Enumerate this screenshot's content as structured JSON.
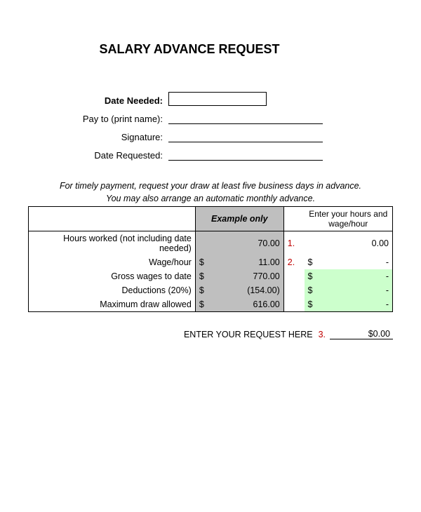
{
  "title": "SALARY ADVANCE REQUEST",
  "form": {
    "date_needed_label": "Date Needed:",
    "pay_to_label": "Pay to (print name):",
    "signature_label": "Signature:",
    "date_requested_label": "Date Requested:"
  },
  "instructions": {
    "line1": "For timely payment, request your draw at least five business days in advance.",
    "line2": "You may also arrange an automatic monthly advance."
  },
  "table": {
    "header": {
      "example": "Example only",
      "user_input": "Enter your hours and wage/hour"
    },
    "rows": [
      {
        "label": "Hours worked (not including date needed)",
        "example_curr": "",
        "example_val": "70.00",
        "num": "1.",
        "user_curr": "",
        "user_val": "0.00",
        "green": false
      },
      {
        "label": "Wage/hour",
        "example_curr": "$",
        "example_val": "11.00",
        "num": "2.",
        "user_curr": "$",
        "user_val": "-",
        "green": false
      },
      {
        "label": "Gross wages to date",
        "example_curr": "$",
        "example_val": "770.00",
        "num": "",
        "user_curr": "$",
        "user_val": "-",
        "green": true
      },
      {
        "label": "Deductions (20%)",
        "example_curr": "$",
        "example_val": "(154.00)",
        "num": "",
        "user_curr": "$",
        "user_val": "-",
        "green": true
      },
      {
        "label": "Maximum draw allowed",
        "example_curr": "$",
        "example_val": "616.00",
        "num": "",
        "user_curr": "$",
        "user_val": "-",
        "green": true
      }
    ]
  },
  "request": {
    "label": "ENTER YOUR REQUEST HERE",
    "num": "3.",
    "value": "$0.00"
  },
  "colors": {
    "gray": "#bfbfbf",
    "green": "#ccffcc",
    "red": "#c00000",
    "black": "#000000",
    "white": "#ffffff"
  }
}
